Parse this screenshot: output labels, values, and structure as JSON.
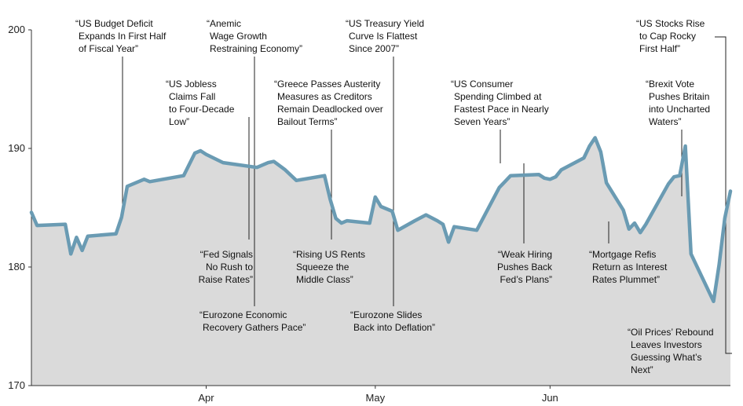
{
  "chart_data": {
    "type": "area",
    "title": "",
    "xlabel": "",
    "ylabel": "",
    "ylim": [
      170,
      200
    ],
    "yticks": [
      "200",
      "190",
      "180",
      "170"
    ],
    "xticks": [
      "Apr",
      "May",
      "Jun"
    ],
    "colors": {
      "line": "#6a9bb3",
      "fill": "#dadada",
      "axis": "#333333"
    },
    "series": [
      {
        "values": [
          {
            "x": "2016-03-01",
            "y": 184.6
          },
          {
            "x": "2016-03-02",
            "y": 183.5
          },
          {
            "x": "2016-03-07",
            "y": 183.6
          },
          {
            "x": "2016-03-08",
            "y": 181.1
          },
          {
            "x": "2016-03-09",
            "y": 182.5
          },
          {
            "x": "2016-03-10",
            "y": 181.4
          },
          {
            "x": "2016-03-11",
            "y": 182.6
          },
          {
            "x": "2016-03-16",
            "y": 182.8
          },
          {
            "x": "2016-03-17",
            "y": 184.2
          },
          {
            "x": "2016-03-18",
            "y": 186.8
          },
          {
            "x": "2016-03-21",
            "y": 187.4
          },
          {
            "x": "2016-03-22",
            "y": 187.2
          },
          {
            "x": "2016-03-28",
            "y": 187.7
          },
          {
            "x": "2016-03-30",
            "y": 189.6
          },
          {
            "x": "2016-03-31",
            "y": 189.8
          },
          {
            "x": "2016-04-01",
            "y": 189.5
          },
          {
            "x": "2016-04-04",
            "y": 188.8
          },
          {
            "x": "2016-04-10",
            "y": 188.4
          },
          {
            "x": "2016-04-12",
            "y": 188.8
          },
          {
            "x": "2016-04-13",
            "y": 188.9
          },
          {
            "x": "2016-04-15",
            "y": 188.2
          },
          {
            "x": "2016-04-17",
            "y": 187.3
          },
          {
            "x": "2016-04-22",
            "y": 187.7
          },
          {
            "x": "2016-04-23",
            "y": 185.7
          },
          {
            "x": "2016-04-24",
            "y": 184.1
          },
          {
            "x": "2016-04-25",
            "y": 183.7
          },
          {
            "x": "2016-04-26",
            "y": 183.9
          },
          {
            "x": "2016-04-30",
            "y": 183.7
          },
          {
            "x": "2016-05-01",
            "y": 185.9
          },
          {
            "x": "2016-05-02",
            "y": 185.1
          },
          {
            "x": "2016-05-04",
            "y": 184.7
          },
          {
            "x": "2016-05-05",
            "y": 183.1
          },
          {
            "x": "2016-05-08",
            "y": 183.9
          },
          {
            "x": "2016-05-10",
            "y": 184.4
          },
          {
            "x": "2016-05-12",
            "y": 183.9
          },
          {
            "x": "2016-05-13",
            "y": 183.6
          },
          {
            "x": "2016-05-14",
            "y": 182.1
          },
          {
            "x": "2016-05-15",
            "y": 183.4
          },
          {
            "x": "2016-05-19",
            "y": 183.1
          },
          {
            "x": "2016-05-23",
            "y": 186.7
          },
          {
            "x": "2016-05-24",
            "y": 187.2
          },
          {
            "x": "2016-05-25",
            "y": 187.7
          },
          {
            "x": "2016-05-30",
            "y": 187.8
          },
          {
            "x": "2016-05-31",
            "y": 187.5
          },
          {
            "x": "2016-06-01",
            "y": 187.4
          },
          {
            "x": "2016-06-02",
            "y": 187.6
          },
          {
            "x": "2016-06-03",
            "y": 188.2
          },
          {
            "x": "2016-06-07",
            "y": 189.2
          },
          {
            "x": "2016-06-08",
            "y": 190.2
          },
          {
            "x": "2016-06-09",
            "y": 190.9
          },
          {
            "x": "2016-06-10",
            "y": 189.7
          },
          {
            "x": "2016-06-11",
            "y": 187.1
          },
          {
            "x": "2016-06-14",
            "y": 184.8
          },
          {
            "x": "2016-06-15",
            "y": 183.2
          },
          {
            "x": "2016-06-16",
            "y": 183.7
          },
          {
            "x": "2016-06-17",
            "y": 182.9
          },
          {
            "x": "2016-06-18",
            "y": 183.6
          },
          {
            "x": "2016-06-22",
            "y": 187.0
          },
          {
            "x": "2016-06-23",
            "y": 187.6
          },
          {
            "x": "2016-06-24",
            "y": 187.7
          },
          {
            "x": "2016-06-25",
            "y": 190.2
          },
          {
            "x": "2016-06-26",
            "y": 181.1
          },
          {
            "x": "2016-06-30",
            "y": 177.1
          },
          {
            "x": "2016-07-01",
            "y": 180.2
          },
          {
            "x": "2016-07-02",
            "y": 184.1
          },
          {
            "x": "2016-07-03",
            "y": 186.4
          }
        ]
      }
    ],
    "annotations": [
      {
        "id": "budget-deficit",
        "text": [
          "“US Budget Deficit",
          "Expands In First Half",
          "of Fiscal Year”"
        ],
        "x": "2016-03-17",
        "y": 184.2,
        "side": "above"
      },
      {
        "id": "anemic-wage",
        "text": [
          "“Anemic",
          "Wage Growth",
          "Restraining Economy”"
        ],
        "x": "2016-04-18",
        "y": 187.3,
        "side": "above"
      },
      {
        "id": "jobless-claims",
        "text": [
          "“US Jobless",
          "Claims Fall",
          "to Four-Decade",
          "Low”"
        ],
        "x": "2016-03-28",
        "y": 187.7,
        "side": "above"
      },
      {
        "id": "greece-austerity",
        "text": [
          "“Greece Passes Austerity",
          "Measures as Creditors",
          "Remain Deadlocked over",
          "Bailout Terms”"
        ],
        "x": "2016-04-28",
        "y": 183.7,
        "side": "above"
      },
      {
        "id": "treasury-yield",
        "text": [
          "“US Treasury Yield",
          "Curve Is Flattest",
          "Since 2007”"
        ],
        "x": "2016-05-12",
        "y": 183.9,
        "side": "above"
      },
      {
        "id": "consumer-spending",
        "text": [
          "“US Consumer",
          "Spending Climbed at",
          "Fastest Pace in Nearly",
          "Seven Years”"
        ],
        "x": "2016-05-31",
        "y": 187.5,
        "side": "above"
      },
      {
        "id": "stocks-rise",
        "text": [
          "“US Stocks Rise",
          "to Cap Rocky",
          "First Half”"
        ],
        "x": "2016-07-03",
        "y": 186.4,
        "side": "above"
      },
      {
        "id": "brexit",
        "text": [
          "“Brexit Vote",
          "Pushes Britain",
          "into Uncharted",
          "Waters”"
        ],
        "x": "2016-06-25",
        "y": 186.0,
        "side": "above"
      },
      {
        "id": "fed-signals",
        "text": [
          "“Fed Signals",
          "No Rush to",
          "Raise Rates”"
        ],
        "x": "2016-04-15",
        "y": 188.2,
        "side": "below"
      },
      {
        "id": "eurozone-recovery",
        "text": [
          "“Eurozone Economic",
          "Recovery Gathers Pace”"
        ],
        "x": "2016-04-17",
        "y": 187.3,
        "side": "below"
      },
      {
        "id": "rising-rents",
        "text": [
          "“Rising US Rents",
          "Squeeze the",
          "Middle Class”"
        ],
        "x": "2016-04-28",
        "y": 183.7,
        "side": "below"
      },
      {
        "id": "eurozone-deflation",
        "text": [
          "“Eurozone Slides",
          "Back into Deflation”"
        ],
        "x": "2016-05-13",
        "y": 183.6,
        "side": "below"
      },
      {
        "id": "weak-hiring",
        "text": [
          "“Weak Hiring",
          "Pushes Back",
          "Fed’s Plans”"
        ],
        "x": "2016-06-03",
        "y": 188.2,
        "side": "below"
      },
      {
        "id": "mortgage-refis",
        "text": [
          "“Mortgage Refis",
          "Return as Interest",
          "Rates Plummet”"
        ],
        "x": "2016-06-18",
        "y": 183.6,
        "side": "below"
      },
      {
        "id": "oil-prices",
        "text": [
          "“Oil Prices’ Rebound",
          "Leaves Investors",
          "Guessing What’s",
          "Next”"
        ],
        "x": "2016-07-03",
        "y": 185.0,
        "side": "below"
      }
    ]
  }
}
